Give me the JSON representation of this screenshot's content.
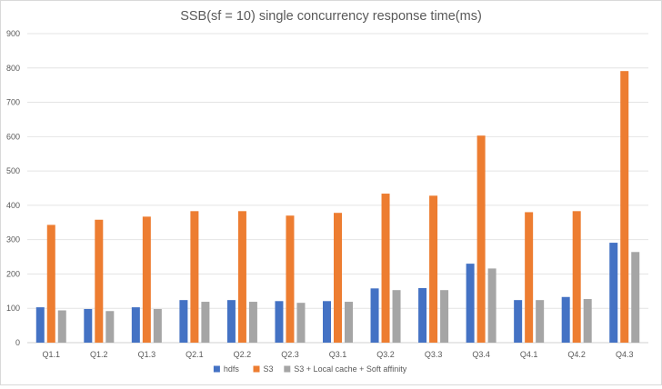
{
  "chart_data": {
    "type": "bar",
    "title": "SSB(sf = 10) single concurrency response time(ms)",
    "xlabel": "",
    "ylabel": "",
    "ylim": [
      0,
      900
    ],
    "yticks": [
      0,
      100,
      200,
      300,
      400,
      500,
      600,
      700,
      800,
      900
    ],
    "grid": true,
    "legend_position": "bottom",
    "categories": [
      "Q1.1",
      "Q1.2",
      "Q1.3",
      "Q2.1",
      "Q2.2",
      "Q2.3",
      "Q3.1",
      "Q3.2",
      "Q3.3",
      "Q3.4",
      "Q4.1",
      "Q4.2",
      "Q4.3"
    ],
    "series": [
      {
        "name": "hdfs",
        "color": "#4472c4",
        "values": [
          103,
          98,
          103,
          124,
          124,
          121,
          121,
          158,
          159,
          230,
          124,
          133,
          291
        ]
      },
      {
        "name": "S3",
        "color": "#ed7d31",
        "values": [
          343,
          358,
          367,
          383,
          383,
          370,
          378,
          434,
          428,
          603,
          380,
          383,
          791
        ]
      },
      {
        "name": "S3 + Local cache + Soft affinity",
        "color": "#a5a5a5",
        "values": [
          94,
          92,
          98,
          119,
          119,
          116,
          119,
          153,
          153,
          216,
          124,
          127,
          264
        ]
      }
    ]
  }
}
